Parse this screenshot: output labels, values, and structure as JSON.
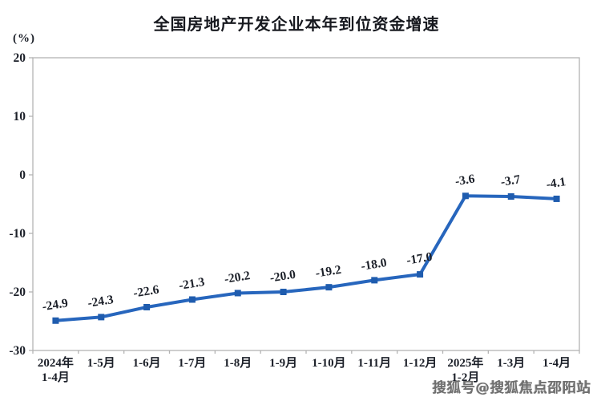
{
  "header": {
    "title": "全国房地产开发企业本年到位资金增速"
  },
  "watermark": {
    "text": "搜狐号@搜狐焦点邵阳站"
  },
  "chart_data": {
    "type": "line",
    "title": "全国房地产开发企业本年到位资金增速",
    "unit_label": "(%)",
    "categories": [
      "2024年\n1-4月",
      "1-5月",
      "1-6月",
      "1-7月",
      "1-8月",
      "1-9月",
      "1-10月",
      "1-11月",
      "1-12月",
      "2025年\n1-2月",
      "1-3月",
      "1-4月"
    ],
    "values": [
      -24.9,
      -24.3,
      -22.6,
      -21.3,
      -20.2,
      -20.0,
      -19.2,
      -18.0,
      -17.0,
      -3.6,
      -3.7,
      -4.1
    ],
    "data_labels": [
      "-24.9",
      "-24.3",
      "-22.6",
      "-21.3",
      "-20.2",
      "-20.0",
      "-19.2",
      "-18.0",
      "-17.0",
      "-3.6",
      "-3.7",
      "-4.1"
    ],
    "xlabel": "",
    "ylabel": "(%)",
    "ylim": [
      -30,
      20
    ],
    "yticks": [
      20,
      10,
      0,
      -10,
      -20,
      -30
    ],
    "grid": false,
    "legend": null,
    "colors": {
      "line": "#2766bd",
      "marker": "#1f5cae",
      "axis": "#b3b3b3",
      "text": "#1c2029",
      "watermark": "#6f6f6f"
    }
  }
}
